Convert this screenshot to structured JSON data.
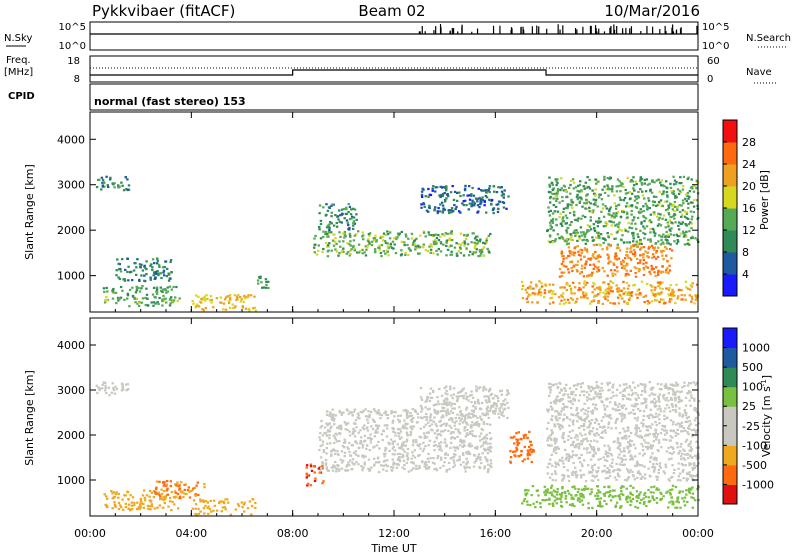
{
  "header": {
    "station": "Pykkvibaer (fitACF)",
    "beam": "Beam 02",
    "date": "10/Mar/2016"
  },
  "noise_panel": {
    "left_label": "N.Sky",
    "right_label": "N.Search",
    "left_ticks": [
      "10^5",
      "10^0"
    ],
    "right_ticks": [
      "10^5",
      "10^0"
    ]
  },
  "freq_panel": {
    "left_label": "Freq.",
    "left_unit": "[MHz]",
    "right_label": "Nave",
    "left_ticks": [
      "18",
      "8"
    ],
    "right_ticks": [
      "60",
      "0"
    ]
  },
  "cpid": {
    "label": "CPID",
    "text": "normal (fast stereo) 153"
  },
  "time_axis": {
    "title": "Time UT",
    "ticks": [
      "00:00",
      "04:00",
      "08:00",
      "12:00",
      "16:00",
      "20:00",
      "00:00"
    ]
  },
  "colors": {
    "power": [
      "#1a1aff",
      "#1e5aa0",
      "#2f8a55",
      "#55aa55",
      "#d6d81e",
      "#f0a020",
      "#ff6a10",
      "#f01010"
    ],
    "velocity": [
      "#e01010",
      "#ff6a10",
      "#f0a820",
      "#c8c8c0",
      "#c8c8c0",
      "#7ac040",
      "#2f8a55",
      "#1e5aa0",
      "#1a1aff"
    ]
  },
  "chart_data": [
    {
      "type": "heatmap",
      "name": "power",
      "ylabel": "Slant Range [km]",
      "yticks": [
        1000,
        2000,
        3000,
        4000
      ],
      "ylim": [
        200,
        4600
      ],
      "xlim_hours": [
        0,
        24
      ],
      "colorbar_label": "Power [dB]",
      "colorbar_ticks": [
        "4",
        "8",
        "12",
        "16",
        "20",
        "24",
        "28"
      ],
      "clim": [
        0,
        32
      ],
      "regions": [
        {
          "t": [
            0.2,
            1.5
          ],
          "r": [
            2900,
            3200
          ],
          "v": 9
        },
        {
          "t": [
            0.5,
            3.5
          ],
          "r": [
            350,
            800
          ],
          "v": 13
        },
        {
          "t": [
            1.0,
            3.2
          ],
          "r": [
            900,
            1400
          ],
          "v": 9
        },
        {
          "t": [
            4.0,
            6.5
          ],
          "r": [
            250,
            600
          ],
          "v": 20
        },
        {
          "t": [
            6.5,
            7.0
          ],
          "r": [
            700,
            1000
          ],
          "v": 12
        },
        {
          "t": [
            8.8,
            15.8
          ],
          "r": [
            1450,
            2000
          ],
          "v": 14
        },
        {
          "t": [
            9.0,
            10.5
          ],
          "r": [
            2000,
            2600
          ],
          "v": 10
        },
        {
          "t": [
            13.0,
            16.5
          ],
          "r": [
            2400,
            3000
          ],
          "v": 7
        },
        {
          "t": [
            17.0,
            24.0
          ],
          "r": [
            400,
            900
          ],
          "v": 22
        },
        {
          "t": [
            18.5,
            23.0
          ],
          "r": [
            1000,
            1700
          ],
          "v": 24
        },
        {
          "t": [
            18.0,
            24.0
          ],
          "r": [
            1700,
            3200
          ],
          "v": 13
        }
      ]
    },
    {
      "type": "heatmap",
      "name": "velocity",
      "ylabel": "Slant Range [km]",
      "yticks": [
        1000,
        2000,
        3000,
        4000
      ],
      "ylim": [
        200,
        4600
      ],
      "xlim_hours": [
        0,
        24
      ],
      "colorbar_label": "Velocity [m s^-1]",
      "colorbar_ticks": [
        "1000",
        "500",
        "100",
        "25",
        "-25",
        "-100",
        "-500",
        "-1000"
      ],
      "regions": [
        {
          "t": [
            0.2,
            1.5
          ],
          "r": [
            2900,
            3200
          ],
          "v": 0
        },
        {
          "t": [
            0.5,
            3.5
          ],
          "r": [
            350,
            800
          ],
          "v": -150
        },
        {
          "t": [
            2.5,
            4.5
          ],
          "r": [
            600,
            1000
          ],
          "v": -300
        },
        {
          "t": [
            4.0,
            6.5
          ],
          "r": [
            250,
            600
          ],
          "v": -150
        },
        {
          "t": [
            8.5,
            9.2
          ],
          "r": [
            900,
            1400
          ],
          "v": -700
        },
        {
          "t": [
            9.0,
            15.8
          ],
          "r": [
            1200,
            2600
          ],
          "v": 0
        },
        {
          "t": [
            13.0,
            16.5
          ],
          "r": [
            2400,
            3100
          ],
          "v": 0
        },
        {
          "t": [
            16.5,
            17.5
          ],
          "r": [
            1400,
            2100
          ],
          "v": -400
        },
        {
          "t": [
            17.0,
            24.0
          ],
          "r": [
            400,
            900
          ],
          "v": 200
        },
        {
          "t": [
            18.0,
            24.0
          ],
          "r": [
            1000,
            3200
          ],
          "v": 0
        }
      ]
    }
  ]
}
